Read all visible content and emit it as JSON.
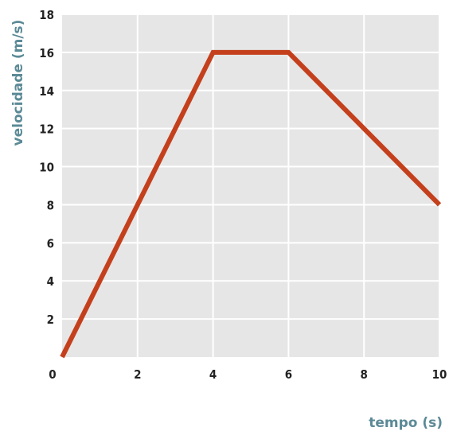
{
  "chart_data": {
    "type": "line",
    "xlabel": "tempo (s)",
    "ylabel": "velocidade (m/s)",
    "xlim": [
      0,
      10
    ],
    "ylim": [
      0,
      18
    ],
    "x_ticks": [
      "0",
      "2",
      "4",
      "6",
      "8",
      "10"
    ],
    "y_ticks": [
      "2",
      "4",
      "6",
      "8",
      "10",
      "12",
      "14",
      "16",
      "18"
    ],
    "grid": true,
    "series": [
      {
        "x": [
          0,
          4,
          6,
          10
        ],
        "y": [
          0,
          16,
          16,
          8
        ]
      }
    ],
    "colors": {
      "plot_background": "#e6e6e6",
      "grid": "#ffffff",
      "line": "#c4401c",
      "axis_title": "#5b8a96",
      "tick_label": "#222222"
    }
  }
}
